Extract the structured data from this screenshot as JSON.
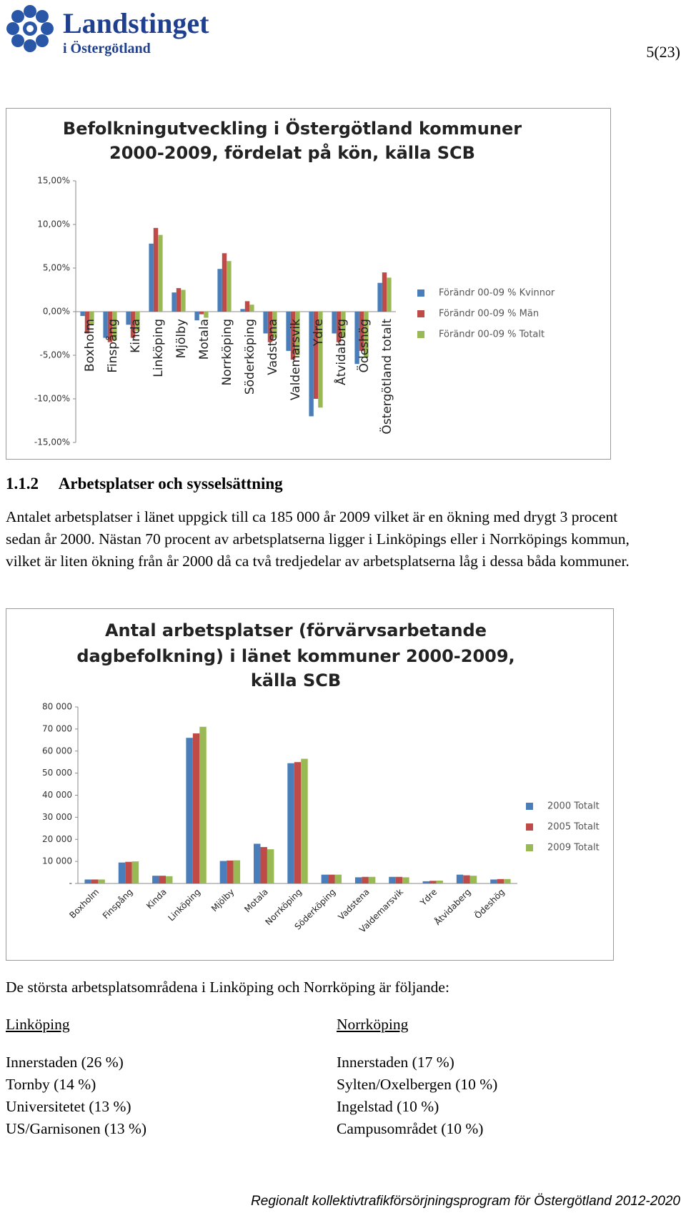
{
  "header": {
    "logo_title": "Landstinget",
    "logo_subtitle": "i Östergötland",
    "page_number": "5(23)"
  },
  "chart_data": [
    {
      "type": "bar",
      "title": [
        "Befolkningutveckling i Östergötland kommuner",
        "2000-2009, fördelat på kön, källa SCB"
      ],
      "categories": [
        "Boxholm",
        "Finspång",
        "Kinda",
        "Linköping",
        "Mjölby",
        "Motala",
        "Norrköping",
        "Söderköping",
        "Vadstena",
        "Valdemarsvik",
        "Ydre",
        "Åtvidaberg",
        "Ödeshög",
        "Östergötland totalt"
      ],
      "series": [
        {
          "name": "Förändr 00-09 % Kvinnor",
          "color": "#4a7ebb",
          "values": [
            -0.5,
            -3.0,
            -1.5,
            7.8,
            2.2,
            -1.0,
            4.9,
            0.3,
            -2.5,
            -4.5,
            -12.0,
            -2.5,
            -6.0,
            3.3
          ]
        },
        {
          "name": "Förändr 00-09 % Män",
          "color": "#be4b48",
          "values": [
            -2.5,
            -3.5,
            -3.0,
            9.6,
            2.7,
            -0.3,
            6.7,
            1.2,
            -3.5,
            -5.5,
            -10.0,
            -3.5,
            -4.5,
            4.5
          ]
        },
        {
          "name": "Förändr 00-09 % Totalt",
          "color": "#98b954",
          "values": [
            -1.5,
            -3.3,
            -2.2,
            8.8,
            2.5,
            -0.7,
            5.8,
            0.8,
            -3.0,
            -5.0,
            -11.0,
            -3.0,
            -5.2,
            3.9
          ]
        }
      ],
      "ylim": [
        -15,
        15
      ],
      "yticks": [
        {
          "value": -15,
          "label": "-15,00%"
        },
        {
          "value": -10,
          "label": "-10,00%"
        },
        {
          "value": -5,
          "label": "-5,00%"
        },
        {
          "value": 0,
          "label": "0,00%"
        },
        {
          "value": 5,
          "label": "5,00%"
        },
        {
          "value": 10,
          "label": "10,00%"
        },
        {
          "value": 15,
          "label": "15,00%"
        }
      ],
      "grid": false,
      "legend": "right"
    },
    {
      "type": "bar",
      "title": [
        "Antal arbetsplatser (förvärvsarbetande",
        "dagbefolkning) i länet kommuner 2000-2009,",
        "källa SCB"
      ],
      "categories": [
        "Boxholm",
        "Finspång",
        "Kinda",
        "Linköping",
        "Mjölby",
        "Motala",
        "Norrköping",
        "Söderköping",
        "Vadstena",
        "Valdemarsvik",
        "Ydre",
        "Åtvidaberg",
        "Ödeshög"
      ],
      "series": [
        {
          "name": "2000 Totalt",
          "color": "#4a7ebb",
          "values": [
            1800,
            9500,
            3500,
            66000,
            10200,
            18000,
            54500,
            4000,
            2800,
            3000,
            1000,
            4000,
            1800
          ]
        },
        {
          "name": "2005 Totalt",
          "color": "#be4b48",
          "values": [
            1800,
            9800,
            3500,
            68000,
            10400,
            16500,
            55000,
            4000,
            3000,
            3000,
            1200,
            3700,
            2000
          ]
        },
        {
          "name": "2009 Totalt",
          "color": "#98b954",
          "values": [
            1800,
            10000,
            3300,
            71000,
            10500,
            15500,
            56500,
            4000,
            3000,
            2800,
            1300,
            3500,
            2000
          ]
        }
      ],
      "ylim": [
        0,
        80000
      ],
      "yticks": [
        {
          "value": 0,
          "label": "-"
        },
        {
          "value": 10000,
          "label": "10 000"
        },
        {
          "value": 20000,
          "label": "20 000"
        },
        {
          "value": 30000,
          "label": "30 000"
        },
        {
          "value": 40000,
          "label": "40 000"
        },
        {
          "value": 50000,
          "label": "50 000"
        },
        {
          "value": 60000,
          "label": "60 000"
        },
        {
          "value": 70000,
          "label": "70 000"
        },
        {
          "value": 80000,
          "label": "80 000"
        }
      ],
      "grid": false,
      "legend": "right"
    }
  ],
  "section": {
    "number": "1.1.2",
    "title": "Arbetsplatser och sysselsättning",
    "paragraph": "Antalet arbetsplatser i länet uppgick till ca 185 000 år 2009 vilket är en ökning med drygt 3 procent sedan år 2000. Nästan 70 procent av arbetsplatserna ligger i Linköpings eller i Norrköpings kommun, vilket är liten ökning från år 2000 då ca två tredjedelar av arbetsplatserna låg i dessa båda kommuner.",
    "intro": "De största arbetsplatsområdena i Linköping och Norrköping är följande:"
  },
  "lists": [
    {
      "heading": "Linköping",
      "items": [
        "Innerstaden (26 %)",
        "Tornby (14 %)",
        "Universitetet (13 %)",
        "US/Garnisonen (13 %)"
      ]
    },
    {
      "heading": "Norrköping",
      "items": [
        "Innerstaden (17 %)",
        "Sylten/Oxelbergen (10 %)",
        "Ingelstad (10 %)",
        "Campusområdet (10 %)"
      ]
    }
  ],
  "footer": "Regionalt kollektivtrafikförsörjningsprogram för Östergötland 2012-2020"
}
